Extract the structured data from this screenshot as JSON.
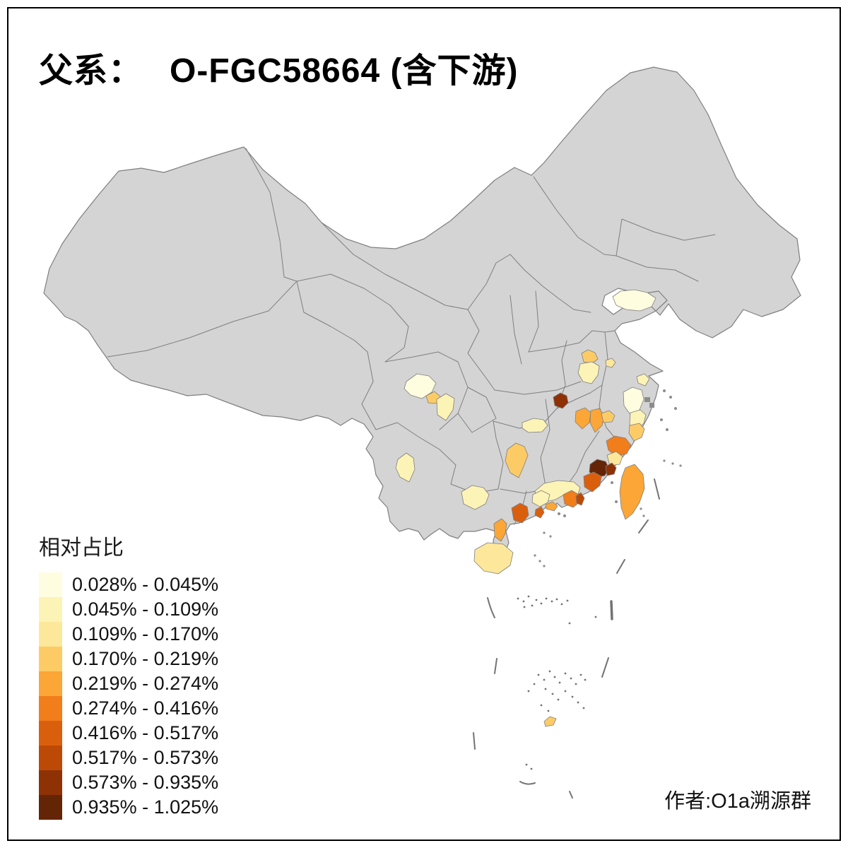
{
  "title": {
    "prefix": "父系：",
    "main": "O-FGC58664 (含下游)"
  },
  "credit": "作者:O1a溯源群",
  "legend": {
    "title": "相对占比",
    "classes": [
      {
        "label": "0.028% - 0.045%",
        "color": "#FFFDE0"
      },
      {
        "label": "0.045% - 0.109%",
        "color": "#FCF3B6"
      },
      {
        "label": "0.109% - 0.170%",
        "color": "#FDE79B"
      },
      {
        "label": "0.170% - 0.219%",
        "color": "#FDCB66"
      },
      {
        "label": "0.219% - 0.274%",
        "color": "#FBA637"
      },
      {
        "label": "0.274% - 0.416%",
        "color": "#F17D1B"
      },
      {
        "label": "0.416% - 0.517%",
        "color": "#DA5F0D"
      },
      {
        "label": "0.517% - 0.573%",
        "color": "#BC4A06"
      },
      {
        "label": "0.573% - 0.935%",
        "color": "#8E3105"
      },
      {
        "label": "0.935% - 1.025%",
        "color": "#642506"
      }
    ]
  },
  "map": {
    "base_fill": "#D4D4D4",
    "border_color": "#7F7F7F",
    "frame_color": "#000000",
    "regions": {
      "shandong-qingdao": 1,
      "hefei": 4,
      "anqing": 2,
      "nanjing": 3,
      "jiaxing": 2,
      "hangzhou": 1,
      "ningbo-shaoxing": 2,
      "taizhou-zhejiang": 4,
      "shangrao-west": 5,
      "shangrao-east": 5,
      "quzhou": 4,
      "jingdezhen": 9,
      "wenzhou": 6,
      "fuzhou-putian": 3,
      "quanzhou": 10,
      "quanzhou-coast": 9,
      "zhangzhou": 7,
      "meizhou-heyuan": 2,
      "zhaoqing-yunfu": 2,
      "jieyang-shantou": 6,
      "chaozhou": 8,
      "shenzhen-coast": 5,
      "jiangmen": 7,
      "yangjiang-maoming": 7,
      "zhanjiang-leizhou": 5,
      "central-guangxi": 2,
      "southern-hunan": 4,
      "changsha-area": 2,
      "zhaotong-yunnan": 2,
      "chengdu-plain-north": 1,
      "chengdu": 4,
      "suining-ziyang": 2,
      "hainan": 3,
      "taiwan": 5,
      "south-china-sea-islet": 4
    }
  },
  "chart_data": {
    "type": "choropleth",
    "title": "父系： O-FGC58664 (含下游)",
    "legend_title": "相对占比",
    "legend_position": "bottom-left",
    "bins": [
      "0.028% - 0.045%",
      "0.045% - 0.109%",
      "0.109% - 0.170%",
      "0.170% - 0.219%",
      "0.219% - 0.274%",
      "0.274% - 0.416%",
      "0.416% - 0.517%",
      "0.517% - 0.573%",
      "0.573% - 0.935%",
      "0.935% - 1.025%"
    ],
    "colors": [
      "#FFFDE0",
      "#FCF3B6",
      "#FDE79B",
      "#FDCB66",
      "#FBA637",
      "#F17D1B",
      "#DA5F0D",
      "#BC4A06",
      "#8E3105",
      "#642506"
    ],
    "base_region_color": "#D4D4D4",
    "regions": [
      {
        "area": "shandong-qingdao",
        "bin": "0.028% - 0.045%"
      },
      {
        "area": "hefei",
        "bin": "0.170% - 0.219%"
      },
      {
        "area": "anqing",
        "bin": "0.045% - 0.109%"
      },
      {
        "area": "nanjing",
        "bin": "0.109% - 0.170%"
      },
      {
        "area": "jiaxing",
        "bin": "0.045% - 0.109%"
      },
      {
        "area": "hangzhou",
        "bin": "0.028% - 0.045%"
      },
      {
        "area": "ningbo-shaoxing",
        "bin": "0.045% - 0.109%"
      },
      {
        "area": "taizhou-zhejiang",
        "bin": "0.170% - 0.219%"
      },
      {
        "area": "shangrao-west",
        "bin": "0.219% - 0.274%"
      },
      {
        "area": "shangrao-east",
        "bin": "0.219% - 0.274%"
      },
      {
        "area": "quzhou",
        "bin": "0.170% - 0.219%"
      },
      {
        "area": "jingdezhen",
        "bin": "0.573% - 0.935%"
      },
      {
        "area": "wenzhou",
        "bin": "0.274% - 0.416%"
      },
      {
        "area": "fuzhou-putian",
        "bin": "0.109% - 0.170%"
      },
      {
        "area": "quanzhou",
        "bin": "0.935% - 1.025%"
      },
      {
        "area": "quanzhou-coast",
        "bin": "0.573% - 0.935%"
      },
      {
        "area": "zhangzhou",
        "bin": "0.416% - 0.517%"
      },
      {
        "area": "meizhou-heyuan",
        "bin": "0.045% - 0.109%"
      },
      {
        "area": "zhaoqing-yunfu",
        "bin": "0.045% - 0.109%"
      },
      {
        "area": "jieyang-shantou",
        "bin": "0.274% - 0.416%"
      },
      {
        "area": "chaozhou",
        "bin": "0.517% - 0.573%"
      },
      {
        "area": "shenzhen-coast",
        "bin": "0.219% - 0.274%"
      },
      {
        "area": "jiangmen",
        "bin": "0.416% - 0.517%"
      },
      {
        "area": "yangjiang-maoming",
        "bin": "0.416% - 0.517%"
      },
      {
        "area": "zhanjiang-leizhou",
        "bin": "0.219% - 0.274%"
      },
      {
        "area": "central-guangxi",
        "bin": "0.045% - 0.109%"
      },
      {
        "area": "southern-hunan",
        "bin": "0.170% - 0.219%"
      },
      {
        "area": "changsha-area",
        "bin": "0.045% - 0.109%"
      },
      {
        "area": "zhaotong-yunnan",
        "bin": "0.045% - 0.109%"
      },
      {
        "area": "chengdu-plain-north",
        "bin": "0.028% - 0.045%"
      },
      {
        "area": "chengdu",
        "bin": "0.170% - 0.219%"
      },
      {
        "area": "suining-ziyang",
        "bin": "0.045% - 0.109%"
      },
      {
        "area": "hainan",
        "bin": "0.109% - 0.170%"
      },
      {
        "area": "taiwan",
        "bin": "0.219% - 0.274%"
      },
      {
        "area": "south-china-sea-islet",
        "bin": "0.170% - 0.219%"
      }
    ]
  }
}
